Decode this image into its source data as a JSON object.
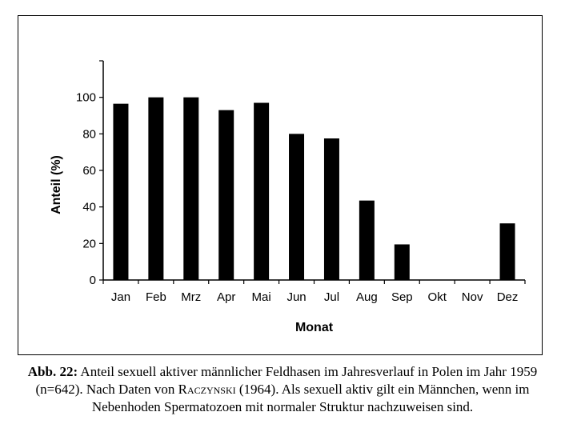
{
  "chart_data": {
    "type": "bar",
    "categories": [
      "Jan",
      "Feb",
      "Mrz",
      "Apr",
      "Mai",
      "Jun",
      "Jul",
      "Aug",
      "Sep",
      "Okt",
      "Nov",
      "Dez"
    ],
    "values": [
      96.5,
      100,
      100,
      93,
      97,
      80,
      77.5,
      43.5,
      19.5,
      0,
      0,
      31
    ],
    "xlabel": "Monat",
    "ylabel": "Anteil (%)",
    "ylim": [
      0,
      120
    ],
    "yticks": [
      0,
      20,
      40,
      60,
      80,
      100
    ],
    "grid": false,
    "bar_color": "#000000"
  },
  "caption": {
    "label": "Abb. 22:",
    "text_before": " Anteil sexuell aktiver männlicher Feldhasen im Jahresverlauf in Polen im Jahr 1959 (n=642). Nach Daten von ",
    "author": "Raczynski",
    "text_after": " (1964). Als sexuell aktiv gilt ein Männchen, wenn im Nebenhoden Spermatozoen mit normaler Struktur nachzuweisen sind."
  }
}
